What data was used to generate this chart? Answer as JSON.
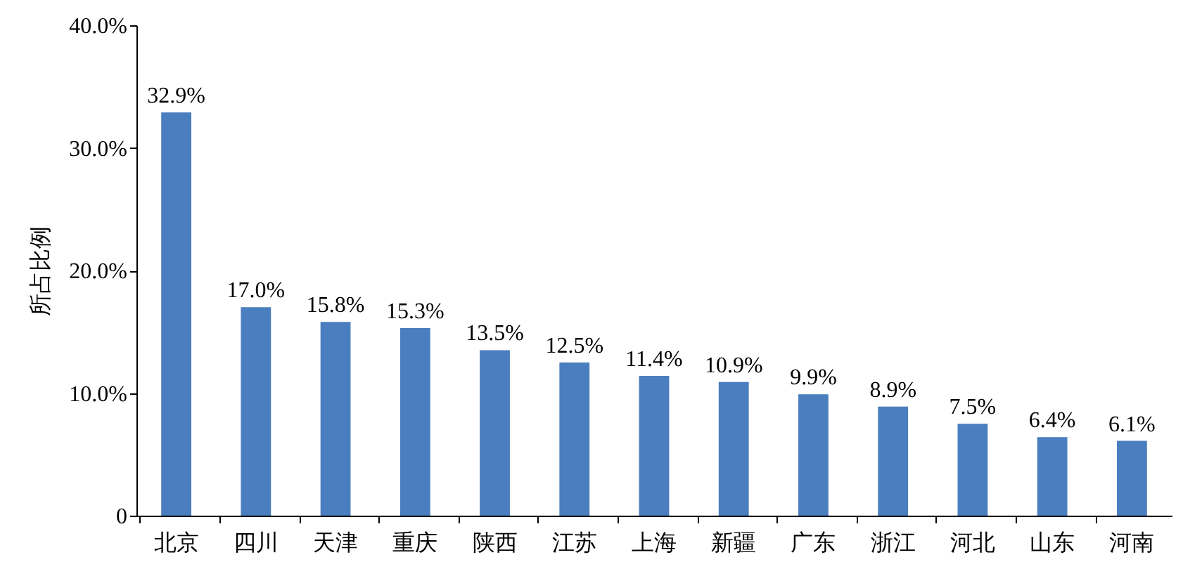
{
  "chart_data": {
    "type": "bar",
    "ylabel": "所占比例",
    "categories": [
      "北京",
      "四川",
      "天津",
      "重庆",
      "陕西",
      "江苏",
      "上海",
      "新疆",
      "广东",
      "浙江",
      "河北",
      "山东",
      "河南"
    ],
    "values": [
      32.9,
      17.0,
      15.8,
      15.3,
      13.5,
      12.5,
      11.4,
      10.9,
      9.9,
      8.9,
      7.5,
      6.4,
      6.1
    ],
    "value_labels": [
      "32.9%",
      "17.0%",
      "15.8%",
      "15.3%",
      "13.5%",
      "12.5%",
      "11.4%",
      "10.9%",
      "9.9%",
      "8.9%",
      "7.5%",
      "6.4%",
      "6.1%"
    ],
    "color": "#4a7ebf",
    "ylim": [
      0,
      40
    ],
    "yticks": [
      0,
      {
        "value": 10,
        "label": "10.0%"
      },
      {
        "value": 20,
        "label": "20.0%"
      },
      {
        "value": 30,
        "label": "30.0%"
      },
      {
        "value": 40,
        "label": "40.0%"
      }
    ],
    "grid": false
  }
}
